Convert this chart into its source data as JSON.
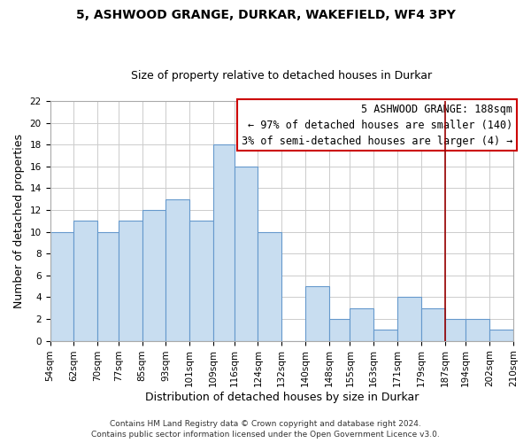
{
  "title": "5, ASHWOOD GRANGE, DURKAR, WAKEFIELD, WF4 3PY",
  "subtitle": "Size of property relative to detached houses in Durkar",
  "xlabel": "Distribution of detached houses by size in Durkar",
  "ylabel": "Number of detached properties",
  "bar_color": "#c8ddf0",
  "bar_edge_color": "#6699cc",
  "grid_color": "#cccccc",
  "background_color": "#ffffff",
  "bin_edges": [
    54,
    62,
    70,
    77,
    85,
    93,
    101,
    109,
    116,
    124,
    132,
    140,
    148,
    155,
    163,
    171,
    179,
    187,
    194,
    202,
    210
  ],
  "bin_labels": [
    "54sqm",
    "62sqm",
    "70sqm",
    "77sqm",
    "85sqm",
    "93sqm",
    "101sqm",
    "109sqm",
    "116sqm",
    "124sqm",
    "132sqm",
    "140sqm",
    "148sqm",
    "155sqm",
    "163sqm",
    "171sqm",
    "179sqm",
    "187sqm",
    "194sqm",
    "202sqm",
    "210sqm"
  ],
  "bar_values": [
    10,
    11,
    10,
    11,
    12,
    13,
    11,
    18,
    16,
    10,
    0,
    5,
    2,
    3,
    1,
    4,
    3,
    2,
    2,
    1
  ],
  "ylim": [
    0,
    22
  ],
  "yticks": [
    0,
    2,
    4,
    6,
    8,
    10,
    12,
    14,
    16,
    18,
    20,
    22
  ],
  "vline_x": 187,
  "vline_color": "#990000",
  "annotation_text_line1": "5 ASHWOOD GRANGE: 188sqm",
  "annotation_text_line2": "← 97% of detached houses are smaller (140)",
  "annotation_text_line3": "3% of semi-detached houses are larger (4) →",
  "footer_line1": "Contains HM Land Registry data © Crown copyright and database right 2024.",
  "footer_line2": "Contains public sector information licensed under the Open Government Licence v3.0.",
  "title_fontsize": 10,
  "subtitle_fontsize": 9,
  "axis_label_fontsize": 9,
  "tick_fontsize": 7.5,
  "annotation_fontsize": 8.5,
  "footer_fontsize": 6.5
}
